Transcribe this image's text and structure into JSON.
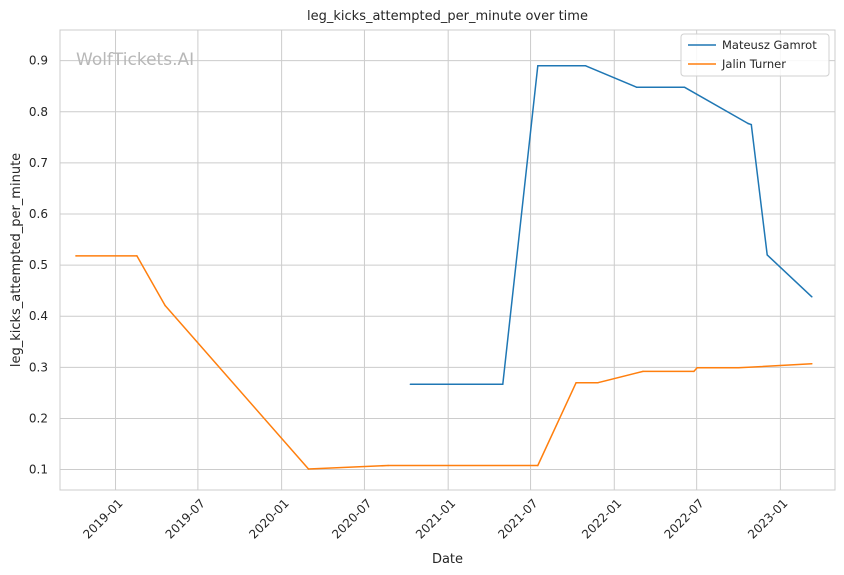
{
  "chart_data": {
    "type": "line",
    "title": "leg_kicks_attempted_per_minute over time",
    "xlabel": "Date",
    "ylabel": "leg_kicks_attempted_per_minute",
    "watermark": "WolfTickets.AI",
    "x_axis": {
      "type": "date",
      "range": [
        "2018-09-01",
        "2023-05-01"
      ],
      "ticks": [
        {
          "date": "2019-01-01",
          "label": "2019-01"
        },
        {
          "date": "2019-07-01",
          "label": "2019-07"
        },
        {
          "date": "2020-01-01",
          "label": "2020-01"
        },
        {
          "date": "2020-07-01",
          "label": "2020-07"
        },
        {
          "date": "2021-01-01",
          "label": "2021-01"
        },
        {
          "date": "2021-07-01",
          "label": "2021-07"
        },
        {
          "date": "2022-01-01",
          "label": "2022-01"
        },
        {
          "date": "2022-07-01",
          "label": "2022-07"
        },
        {
          "date": "2023-01-01",
          "label": "2023-01"
        }
      ]
    },
    "y_axis": {
      "range": [
        0.06,
        0.96
      ],
      "ticks": [
        0.1,
        0.2,
        0.3,
        0.4,
        0.5,
        0.6,
        0.7,
        0.8,
        0.9
      ],
      "tick_labels": [
        "0.1",
        "0.2",
        "0.3",
        "0.4",
        "0.5",
        "0.6",
        "0.7",
        "0.8",
        "0.9"
      ]
    },
    "grid": true,
    "legend": {
      "position": "top-right"
    },
    "series": [
      {
        "name": "Mateusz Gamrot",
        "color": "#1f77b4",
        "points": [
          {
            "date": "2020-10-10",
            "value": 0.267
          },
          {
            "date": "2021-05-01",
            "value": 0.267
          },
          {
            "date": "2021-07-17",
            "value": 0.89
          },
          {
            "date": "2021-10-30",
            "value": 0.89
          },
          {
            "date": "2022-02-19",
            "value": 0.848
          },
          {
            "date": "2022-06-04",
            "value": 0.848
          },
          {
            "date": "2022-10-22",
            "value": 0.777
          },
          {
            "date": "2022-10-29",
            "value": 0.775
          },
          {
            "date": "2022-12-03",
            "value": 0.52
          },
          {
            "date": "2023-03-11",
            "value": 0.438
          }
        ]
      },
      {
        "name": "Jalin Turner",
        "color": "#ff7f0e",
        "points": [
          {
            "date": "2018-10-06",
            "value": 0.518
          },
          {
            "date": "2019-02-17",
            "value": 0.518
          },
          {
            "date": "2019-04-20",
            "value": 0.421
          },
          {
            "date": "2020-02-29",
            "value": 0.101
          },
          {
            "date": "2020-08-22",
            "value": 0.108
          },
          {
            "date": "2021-07-17",
            "value": 0.108
          },
          {
            "date": "2021-10-09",
            "value": 0.27
          },
          {
            "date": "2021-11-26",
            "value": 0.27
          },
          {
            "date": "2022-03-05",
            "value": 0.292
          },
          {
            "date": "2022-06-25",
            "value": 0.292
          },
          {
            "date": "2022-07-02",
            "value": 0.299
          },
          {
            "date": "2022-10-01",
            "value": 0.299
          },
          {
            "date": "2023-03-11",
            "value": 0.307
          }
        ]
      }
    ]
  }
}
